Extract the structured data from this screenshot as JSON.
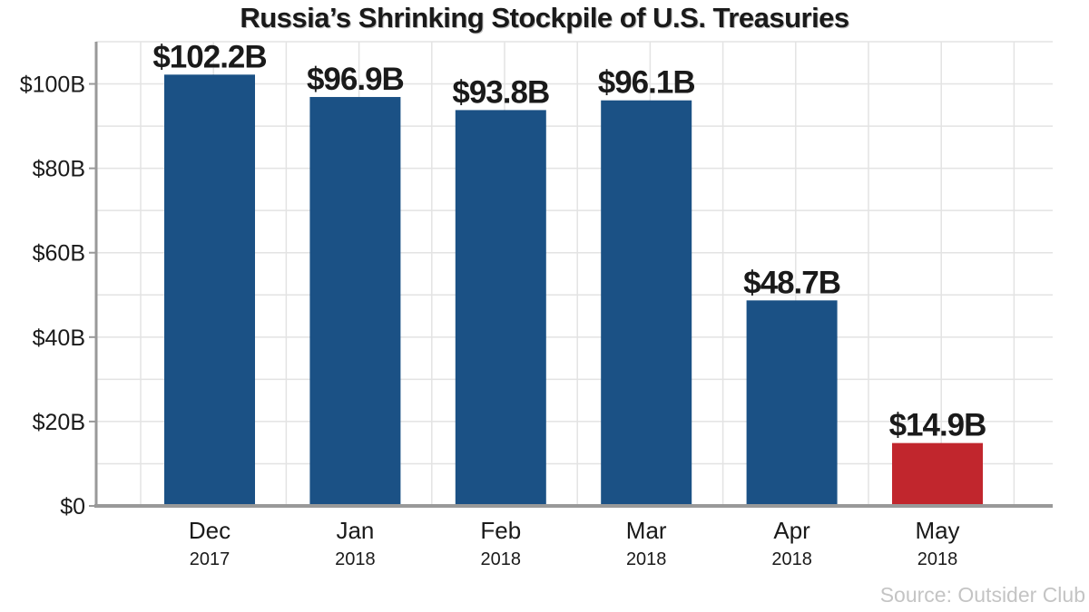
{
  "chart_data": {
    "type": "bar",
    "title": "Russia’s Shrinking Stockpile of U.S. Treasuries",
    "categories": [
      {
        "month": "Dec",
        "year": "2017"
      },
      {
        "month": "Jan",
        "year": "2018"
      },
      {
        "month": "Feb",
        "year": "2018"
      },
      {
        "month": "Mar",
        "year": "2018"
      },
      {
        "month": "Apr",
        "year": "2018"
      },
      {
        "month": "May",
        "year": "2018"
      }
    ],
    "values": [
      102.2,
      96.9,
      93.8,
      96.1,
      48.7,
      14.9
    ],
    "data_labels": [
      "$102.2B",
      "$96.9B",
      "$93.8B",
      "$96.1B",
      "$48.7B",
      "$14.9B"
    ],
    "units": "billions of USD",
    "ylim": [
      0,
      110
    ],
    "yticks": [
      0,
      20,
      40,
      60,
      80,
      100
    ],
    "ytick_labels": [
      "$0",
      "$20B",
      "$40B",
      "$60B",
      "$80B",
      "$100B"
    ],
    "grid": true,
    "colors": {
      "bar": "#1b5185",
      "highlight_bar": "#c1262d",
      "grid": "#e3e3e3",
      "axis": "#999999"
    },
    "highlight_index": 5
  },
  "source": "Source: Outsider Club"
}
